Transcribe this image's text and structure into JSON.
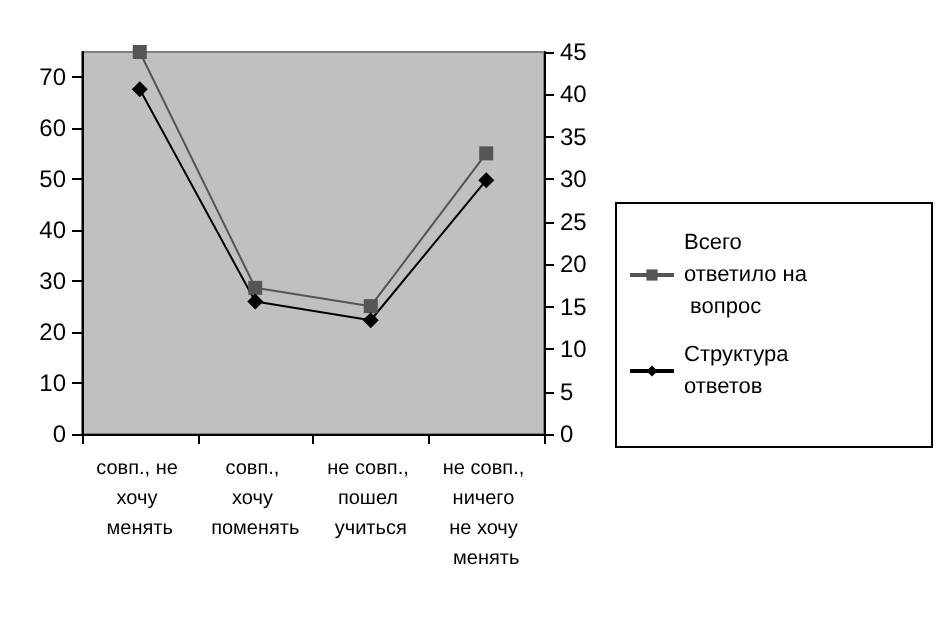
{
  "chart_data": {
    "type": "line",
    "categories": [
      "совп., не хочу менять",
      "совп., хочу поменять",
      "не совп., пошел учиться",
      "не совп., ничего не хочу менять"
    ],
    "series": [
      {
        "name": "Всего ответило на вопрос",
        "color": "#555555",
        "marker": "square",
        "values": [
          75,
          28.7,
          25.1,
          55.1
        ]
      },
      {
        "name": "Структура ответов",
        "color": "#000000",
        "marker": "diamond",
        "axis": "y2",
        "values": [
          40.6,
          15.6,
          13.4,
          29.9
        ]
      }
    ],
    "ylim": [
      0,
      75
    ],
    "yticks": [
      0,
      10,
      20,
      30,
      40,
      50,
      60,
      70
    ],
    "y2lim": [
      0,
      45
    ],
    "y2ticks": [
      0,
      5,
      10,
      15,
      20,
      25,
      30,
      35,
      40,
      45
    ],
    "grid": false,
    "legend": "right"
  }
}
